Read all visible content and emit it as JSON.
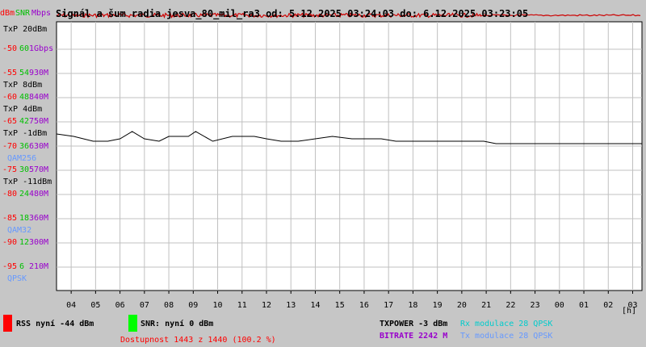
{
  "header": {
    "unit_dbm": "dBm",
    "unit_snr": "SNR",
    "unit_mbps": "Mbps",
    "title": "Signál a šum radia jesva_80_mil_ra3 od: 5.12.2025 03:24:03 do: 6.12.2025 03:23:05"
  },
  "colors": {
    "rss": "#ff0000",
    "snr": "#00ff00",
    "mbps": "#9900cc",
    "txp": "#000000",
    "modulation": "#6699ff",
    "modulation_tx": "#00cccc",
    "trace": "#000000",
    "rss_trace": "#cc0000",
    "plot_bg": "#ffffff",
    "grid": "#c0c0c0",
    "page_bg": "#c6c6c6"
  },
  "axis_rows": [
    {
      "txp": "TxP 20dBm"
    },
    {
      "dbm": "-50",
      "snr": "60",
      "mbps": "1Gbps"
    },
    {
      "dbm": "-55",
      "snr": "54",
      "mbps": "930M"
    },
    {
      "txp": "TxP 8dBm"
    },
    {
      "dbm": "-60",
      "snr": "48",
      "mbps": "840M"
    },
    {
      "txp": "TxP 4dBm"
    },
    {
      "dbm": "-65",
      "snr": "42",
      "mbps": "750M"
    },
    {
      "txp": "TxP -1dBm"
    },
    {
      "dbm": "-70",
      "snr": "36",
      "mbps": "630M"
    },
    {
      "mod": "QAM256"
    },
    {
      "dbm": "-75",
      "snr": "30",
      "mbps": "570M"
    },
    {
      "txp": "TxP -11dBm"
    },
    {
      "dbm": "-80",
      "snr": "24",
      "mbps": "480M"
    },
    {
      "dbm": "-85",
      "snr": "18",
      "mbps": "360M"
    },
    {
      "mod": "QAM32"
    },
    {
      "dbm": "-90",
      "snr": "12",
      "mbps": "300M"
    },
    {
      "dbm": "-95",
      "snr": "6",
      "mbps": "210M"
    },
    {
      "mod": "QPSK"
    }
  ],
  "x_axis_unit": "[h]",
  "footer": {
    "rss_label": "RSS nyní -44 dBm",
    "snr_label": "SNR: nyní 0 dBm",
    "availability": "Dostupnost 1443 z 1440 (100.2 %)",
    "txpower": "TXPOWER -3 dBm",
    "rx_mod": "Rx modulace 28 QPSK",
    "bitrate": "BITRATE 2242 M",
    "tx_mod": "Tx modulace 28 QPSK"
  },
  "chart_data": {
    "type": "line",
    "title": "Signál a šum radia jesva_80_mil_ra3 od: 5.12.2025 03:24:03 do: 6.12.2025 03:23:05",
    "x_ticks": [
      "04",
      "05",
      "06",
      "07",
      "08",
      "09",
      "10",
      "11",
      "12",
      "13",
      "14",
      "15",
      "16",
      "17",
      "18",
      "19",
      "20",
      "21",
      "22",
      "23",
      "00",
      "01",
      "02",
      "03"
    ],
    "xlabel": "[h]",
    "y_axes": {
      "dbm_ticks": [
        -50,
        -55,
        -60,
        -65,
        -70,
        -75,
        -80,
        -85,
        -90,
        -95
      ],
      "snr_ticks": [
        60,
        54,
        48,
        42,
        36,
        30,
        24,
        18,
        12,
        6
      ],
      "mbps_ticks": [
        "1Gbps",
        "930M",
        "840M",
        "750M",
        "630M",
        "570M",
        "480M",
        "360M",
        "300M",
        "210M"
      ],
      "txp_ticks": [
        "TxP 20dBm",
        "TxP 8dBm",
        "TxP 4dBm",
        "TxP -1dBm",
        "TxP -11dBm"
      ],
      "modulation_ticks": [
        "QAM256",
        "QAM32",
        "QPSK"
      ]
    },
    "grid": true,
    "series": [
      {
        "name": "RSS",
        "unit": "dBm",
        "x_hours": [
          3.4,
          6,
          9,
          12,
          15,
          18,
          21,
          24,
          27.38
        ],
        "values": [
          -44,
          -44,
          -44,
          -44,
          -44,
          -44,
          -44,
          -44,
          -44
        ]
      },
      {
        "name": "TXPOWER",
        "unit": "dBm",
        "x_hours": [
          3.4,
          4.1,
          4.9,
          5.5,
          6.0,
          6.5,
          7.0,
          7.6,
          8.0,
          8.8,
          9.1,
          9.8,
          10.6,
          11.5,
          12.0,
          12.6,
          13.3,
          14.0,
          14.7,
          15.5,
          16.0,
          16.7,
          17.3,
          18.1,
          19.0,
          19.6,
          20.2,
          20.9,
          21.4,
          22.0,
          23.0,
          24.0,
          25.0,
          26.0,
          27.38
        ],
        "values": [
          -1,
          -1.5,
          -2.5,
          -2.5,
          -2,
          -0.5,
          -2,
          -2.5,
          -1.5,
          -1.5,
          -0.5,
          -2.5,
          -1.5,
          -1.5,
          -2,
          -2.5,
          -2.5,
          -2,
          -1.5,
          -2,
          -2,
          -2,
          -2.5,
          -2.5,
          -2.5,
          -2.5,
          -2.5,
          -2.5,
          -3,
          -3,
          -3,
          -3,
          -3,
          -3,
          -3
        ]
      }
    ]
  }
}
